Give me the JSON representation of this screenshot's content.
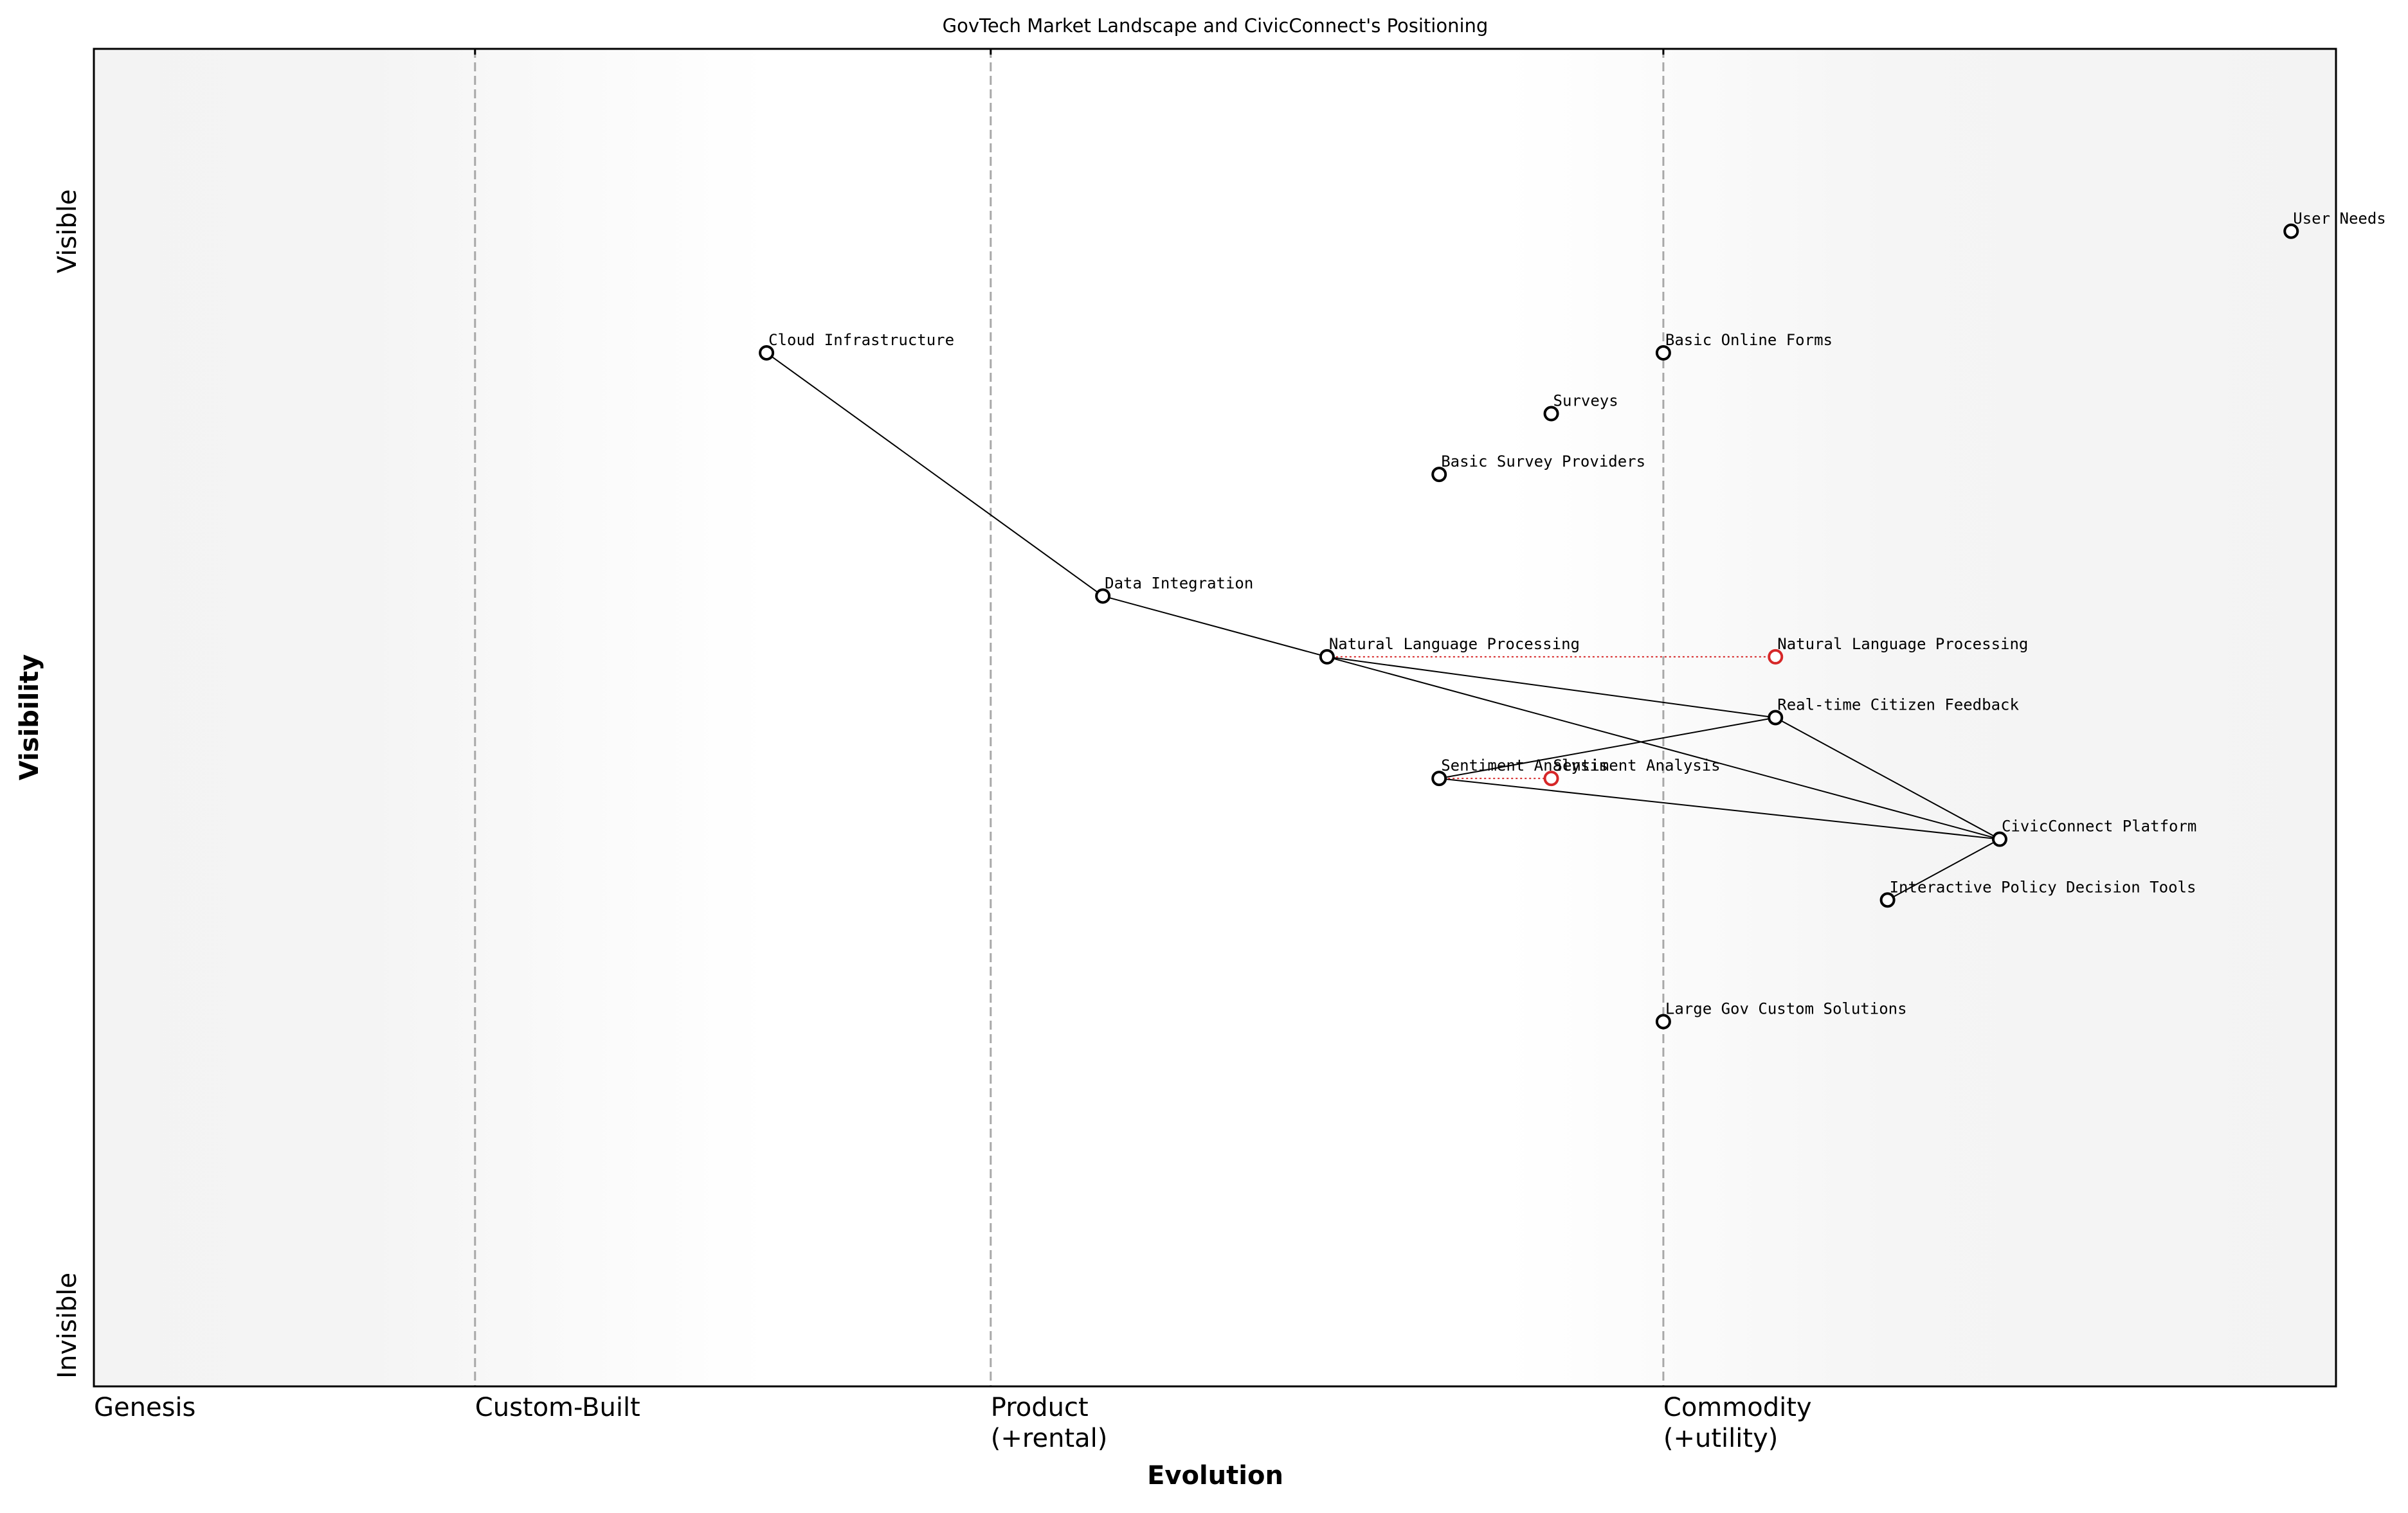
{
  "chart_data": {
    "type": "wardley",
    "title": "GovTech Market Landscape and CivicConnect's Positioning",
    "x_label": "Evolution",
    "y_label": "Visibility",
    "xlim": [
      0,
      1
    ],
    "ylim": [
      0,
      1.1
    ],
    "xticks": [
      {
        "value": 0,
        "label": "Genesis"
      },
      {
        "value": 0.17,
        "label": "Custom-Built"
      },
      {
        "value": 0.4,
        "label": "Product\n(+rental)"
      },
      {
        "value": 0.7,
        "label": "Commodity\n(+utility)"
      }
    ],
    "yticks": [
      {
        "value": 0.05,
        "label": "Invisible"
      },
      {
        "value": 0.95,
        "label": "Visible"
      }
    ],
    "grid": true,
    "color": "#000000",
    "components": [
      {
        "name": "User Needs",
        "x": 0.98,
        "y": 0.95
      },
      {
        "name": "Cloud Infrastructure",
        "x": 0.3,
        "y": 0.85
      },
      {
        "name": "Basic Online Forms",
        "x": 0.7,
        "y": 0.85
      },
      {
        "name": "Surveys",
        "x": 0.65,
        "y": 0.8
      },
      {
        "name": "Basic Survey Providers",
        "x": 0.6,
        "y": 0.75
      },
      {
        "name": "Data Integration",
        "x": 0.45,
        "y": 0.65
      },
      {
        "name": "Natural Language Processing",
        "x": 0.55,
        "y": 0.6
      },
      {
        "name": "Real-time Citizen Feedback",
        "x": 0.75,
        "y": 0.55
      },
      {
        "name": "Sentiment Analysis",
        "x": 0.6,
        "y": 0.5
      },
      {
        "name": "CivicConnect Platform",
        "x": 0.85,
        "y": 0.45
      },
      {
        "name": "Interactive Policy Decision Tools",
        "x": 0.8,
        "y": 0.4
      },
      {
        "name": "Large Gov Custom Solutions",
        "x": 0.7,
        "y": 0.3
      }
    ],
    "evolved_color": "#d62728",
    "evolved": [
      {
        "name": "Natural Language Processing",
        "x": 0.75,
        "y": 0.6
      },
      {
        "name": "Sentiment Analysis",
        "x": 0.65,
        "y": 0.5
      }
    ],
    "links": [
      [
        "Cloud Infrastructure",
        "Data Integration"
      ],
      [
        "Data Integration",
        "Natural Language Processing"
      ],
      [
        "Natural Language Processing",
        "Real-time Citizen Feedback"
      ],
      [
        "Natural Language Processing",
        "CivicConnect Platform"
      ],
      [
        "Real-time Citizen Feedback",
        "CivicConnect Platform"
      ],
      [
        "Sentiment Analysis",
        "Real-time Citizen Feedback"
      ],
      [
        "Sentiment Analysis",
        "CivicConnect Platform"
      ],
      [
        "CivicConnect Platform",
        "Interactive Policy Decision Tools"
      ]
    ]
  }
}
